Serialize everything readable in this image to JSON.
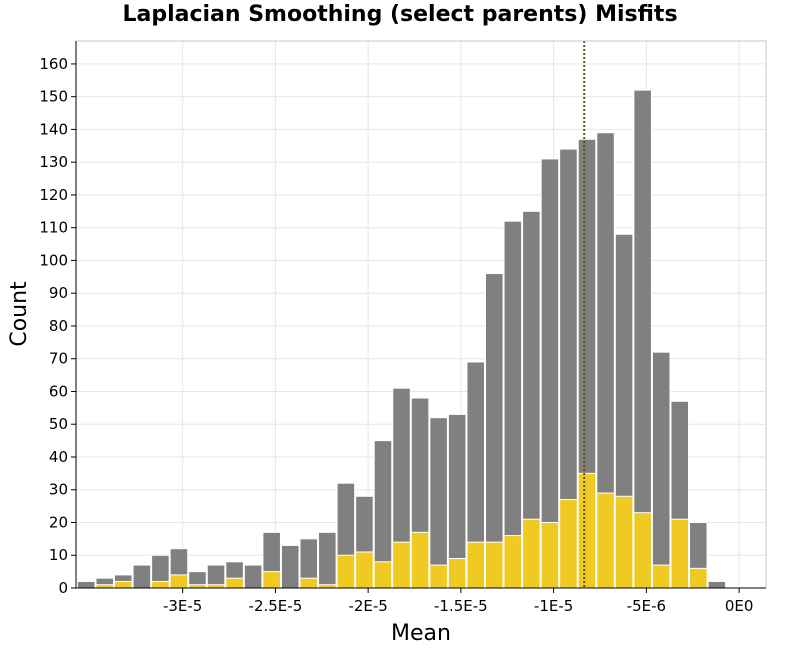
{
  "chart_data": {
    "type": "bar",
    "title": "Laplacian Smoothing (select parents) Misfits",
    "xlabel": "Mean",
    "ylabel": "Count",
    "bin_width": 1e-06,
    "xlim": [
      -3.575e-05,
      1.45e-06
    ],
    "ylim": [
      0,
      167
    ],
    "xticks": [
      {
        "value": -3e-05,
        "label": "-3E-5"
      },
      {
        "value": -2.5e-05,
        "label": "-2.5E-5"
      },
      {
        "value": -2e-05,
        "label": "-2E-5"
      },
      {
        "value": -1.5e-05,
        "label": "-1.5E-5"
      },
      {
        "value": -1e-05,
        "label": "-1E-5"
      },
      {
        "value": -5e-06,
        "label": "-5E-6"
      },
      {
        "value": 0,
        "label": "0E0"
      }
    ],
    "yticks": [
      0,
      10,
      20,
      30,
      40,
      50,
      60,
      70,
      80,
      90,
      100,
      110,
      120,
      130,
      140,
      150,
      160
    ],
    "grid": true,
    "bin_centers": [
      -3.52e-05,
      -3.42e-05,
      -3.32e-05,
      -3.22e-05,
      -3.12e-05,
      -3.02e-05,
      -2.92e-05,
      -2.82e-05,
      -2.72e-05,
      -2.62e-05,
      -2.52e-05,
      -2.42e-05,
      -2.32e-05,
      -2.22e-05,
      -2.12e-05,
      -2.02e-05,
      -1.92e-05,
      -1.82e-05,
      -1.72e-05,
      -1.62e-05,
      -1.52e-05,
      -1.42e-05,
      -1.32e-05,
      -1.22e-05,
      -1.12e-05,
      -1.02e-05,
      -9.2e-06,
      -8.2e-06,
      -7.2e-06,
      -6.2e-06,
      -5.2e-06,
      -4.2e-06,
      -3.2e-06,
      -2.2e-06,
      -1.2e-06,
      -2e-07,
      8e-07
    ],
    "series": [
      {
        "color": "#808080",
        "values": [
          2,
          3,
          4,
          7,
          10,
          12,
          5,
          7,
          8,
          7,
          17,
          13,
          15,
          17,
          32,
          28,
          45,
          61,
          58,
          52,
          53,
          69,
          96,
          112,
          115,
          131,
          134,
          137,
          139,
          108,
          152,
          72,
          57,
          20,
          2,
          0,
          0
        ]
      },
      {
        "color": "#f0c923",
        "values": [
          0,
          1,
          2,
          0,
          2,
          4,
          1,
          1,
          3,
          0,
          5,
          0,
          3,
          1,
          10,
          11,
          8,
          14,
          17,
          7,
          9,
          14,
          14,
          16,
          21,
          20,
          27,
          35,
          29,
          28,
          23,
          7,
          21,
          6,
          0,
          0,
          0
        ]
      }
    ],
    "reference_line": {
      "x": -8.35e-06,
      "color": "#5a5218",
      "style": "dotted"
    }
  }
}
